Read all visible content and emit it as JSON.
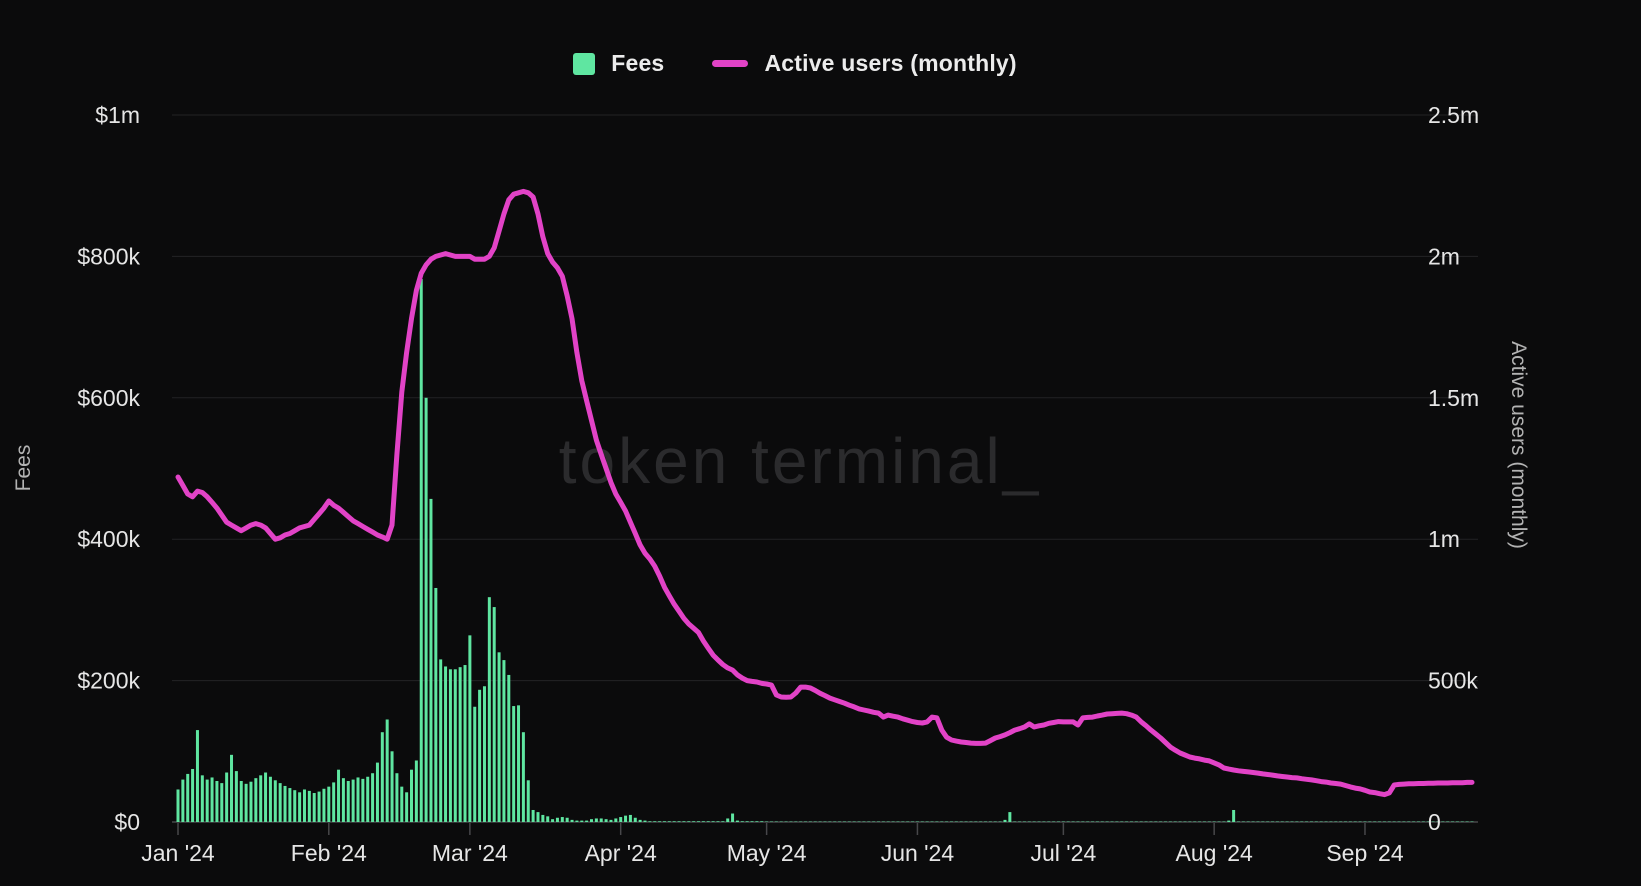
{
  "theme": {
    "background": "#0b0b0c",
    "tick_text": "#e6e6e6",
    "axis_title_text": "#b3b3b3",
    "gridline": "#232325",
    "baseline": "#47474a",
    "watermark_color": "#2b2b2d",
    "bar_color": "#5fe6a1",
    "line_color": "#e243c7"
  },
  "watermark": "token terminal_",
  "legend": [
    {
      "label": "Fees",
      "swatch": "square",
      "color": "#5fe6a1"
    },
    {
      "label": "Active users (monthly)",
      "swatch": "line",
      "color": "#e243c7"
    }
  ],
  "chart_data": {
    "type": "combo",
    "x_unit": "day",
    "x_range": "Jan 1 2024 - Sep 23 2024",
    "grid": "horizontal",
    "legend_position": "top-center",
    "x_tick_labels": [
      "Jan '24",
      "Feb '24",
      "Mar '24",
      "Apr '24",
      "May '24",
      "Jun '24",
      "Jul '24",
      "Aug '24",
      "Sep '24"
    ],
    "x_tick_day_index": [
      0,
      31,
      60,
      91,
      121,
      152,
      182,
      213,
      244
    ],
    "left_axis": {
      "label": "Fees",
      "min": 0,
      "max": 1000000,
      "tick_labels": [
        "$0",
        "$200k",
        "$400k",
        "$600k",
        "$800k",
        "$1m"
      ]
    },
    "right_axis": {
      "label": "Active users (monthly)",
      "min": 0,
      "max": 2500000,
      "tick_labels": [
        "0",
        "500k",
        "1m",
        "1.5m",
        "2m",
        "2.5m"
      ]
    },
    "series": [
      {
        "name": "Fees",
        "type": "bar",
        "axis": "left",
        "color": "#5fe6a1",
        "unit": "USD thousands per day",
        "values": [
          46,
          60,
          68,
          75,
          130,
          66,
          60,
          63,
          58,
          55,
          70,
          95,
          72,
          58,
          54,
          57,
          62,
          66,
          70,
          64,
          59,
          55,
          51,
          48,
          45,
          42,
          46,
          44,
          41,
          43,
          47,
          50,
          56,
          74,
          62,
          58,
          60,
          63,
          61,
          64,
          69,
          84,
          127,
          145,
          100,
          69,
          50,
          42,
          74,
          87,
          768,
          600,
          457,
          331,
          230,
          220,
          216,
          216,
          219,
          222,
          264,
          163,
          187,
          192,
          318,
          304,
          240,
          229,
          208,
          164,
          165,
          127,
          59,
          17,
          14,
          10,
          8,
          4,
          6,
          7,
          6,
          3,
          2,
          2,
          2,
          4,
          5,
          5,
          4,
          3,
          5,
          7,
          9,
          10,
          6,
          3,
          2,
          1,
          1,
          1,
          1,
          1,
          1,
          1,
          1,
          1,
          1,
          1,
          1,
          1,
          1,
          1,
          1,
          5,
          12,
          2,
          1,
          1,
          1,
          1,
          1,
          0.6,
          0.6,
          0.6,
          0.6,
          0.6,
          0.6,
          0.6,
          0.6,
          0.6,
          0.6,
          0.6,
          0.6,
          0.6,
          0.6,
          0.6,
          0.6,
          0.6,
          0.6,
          0.6,
          0.6,
          0.6,
          0.6,
          0.6,
          0.6,
          0.6,
          0.6,
          0.6,
          0.6,
          0.6,
          0.6,
          0.6,
          0.6,
          0.6,
          0.6,
          0.6,
          0.6,
          0.6,
          0.6,
          0.6,
          0.6,
          0.6,
          0.6,
          0.6,
          0.6,
          0.6,
          0.6,
          0.6,
          0.6,
          0.6,
          3,
          14,
          0.6,
          0.6,
          0.6,
          0.6,
          0.6,
          0.6,
          0.6,
          0.6,
          0.6,
          0.6,
          0.6,
          0.6,
          0.6,
          0.6,
          0.6,
          0.6,
          0.6,
          0.6,
          0.6,
          0.6,
          0.6,
          0.6,
          0.6,
          0.6,
          0.6,
          0.6,
          0.6,
          0.6,
          0.6,
          0.6,
          0.6,
          0.6,
          0.6,
          0.6,
          0.6,
          0.6,
          0.6,
          0.6,
          0.6,
          0.6,
          0.6,
          0.6,
          0.6,
          0.6,
          2,
          17,
          0.6,
          0.6,
          0.6,
          0.6,
          0.6,
          0.6,
          0.6,
          0.6,
          0.6,
          0.6,
          0.6,
          0.6,
          0.6,
          0.6,
          0.6,
          0.6,
          0.6,
          0.6,
          0.6,
          0.6,
          0.6,
          0.6,
          0.6,
          0.6,
          0.6,
          0.6,
          0.6,
          0.6,
          0.6,
          0.6,
          0.6,
          0.6,
          0.6,
          0.6,
          0.6,
          0.6,
          0.6,
          0.6,
          0.6,
          0.6,
          0.6,
          0.6,
          0.6,
          0.6,
          0.6,
          0.6,
          0.6,
          0.6,
          0.6
        ]
      },
      {
        "name": "Active users (monthly)",
        "type": "line",
        "axis": "right",
        "color": "#e243c7",
        "unit": "millions of users",
        "values": [
          1.22,
          1.19,
          1.16,
          1.15,
          1.17,
          1.165,
          1.15,
          1.13,
          1.11,
          1.085,
          1.06,
          1.05,
          1.04,
          1.03,
          1.04,
          1.05,
          1.055,
          1.05,
          1.04,
          1.02,
          1.0,
          1.005,
          1.015,
          1.02,
          1.03,
          1.04,
          1.045,
          1.05,
          1.07,
          1.09,
          1.11,
          1.135,
          1.12,
          1.11,
          1.095,
          1.08,
          1.065,
          1.055,
          1.045,
          1.035,
          1.025,
          1.015,
          1.008,
          1.0,
          1.05,
          1.3,
          1.52,
          1.66,
          1.78,
          1.88,
          1.94,
          1.97,
          1.99,
          2.0,
          2.005,
          2.01,
          2.005,
          2.0,
          2.0,
          2.0,
          2.0,
          1.99,
          1.99,
          1.99,
          2.0,
          2.03,
          2.09,
          2.15,
          2.2,
          2.22,
          2.225,
          2.23,
          2.225,
          2.21,
          2.15,
          2.07,
          2.01,
          1.98,
          1.96,
          1.93,
          1.86,
          1.78,
          1.66,
          1.56,
          1.49,
          1.42,
          1.35,
          1.3,
          1.25,
          1.2,
          1.16,
          1.13,
          1.1,
          1.06,
          1.02,
          0.98,
          0.95,
          0.93,
          0.905,
          0.87,
          0.83,
          0.8,
          0.77,
          0.745,
          0.72,
          0.7,
          0.685,
          0.67,
          0.64,
          0.615,
          0.59,
          0.573,
          0.557,
          0.545,
          0.537,
          0.52,
          0.509,
          0.5,
          0.497,
          0.495,
          0.49,
          0.488,
          0.484,
          0.449,
          0.442,
          0.441,
          0.442,
          0.456,
          0.477,
          0.477,
          0.474,
          0.465,
          0.455,
          0.447,
          0.438,
          0.432,
          0.426,
          0.42,
          0.413,
          0.407,
          0.4,
          0.396,
          0.392,
          0.388,
          0.385,
          0.371,
          0.378,
          0.374,
          0.371,
          0.365,
          0.36,
          0.355,
          0.352,
          0.35,
          0.354,
          0.371,
          0.368,
          0.325,
          0.3,
          0.29,
          0.286,
          0.283,
          0.281,
          0.279,
          0.278,
          0.278,
          0.279,
          0.288,
          0.297,
          0.302,
          0.308,
          0.316,
          0.325,
          0.33,
          0.336,
          0.347,
          0.336,
          0.34,
          0.343,
          0.349,
          0.352,
          0.355,
          0.354,
          0.354,
          0.354,
          0.343,
          0.368,
          0.37,
          0.371,
          0.375,
          0.378,
          0.382,
          0.383,
          0.384,
          0.385,
          0.383,
          0.378,
          0.371,
          0.354,
          0.34,
          0.325,
          0.311,
          0.297,
          0.281,
          0.265,
          0.254,
          0.244,
          0.237,
          0.23,
          0.226,
          0.223,
          0.219,
          0.216,
          0.209,
          0.202,
          0.191,
          0.187,
          0.184,
          0.181,
          0.179,
          0.177,
          0.175,
          0.173,
          0.17,
          0.168,
          0.166,
          0.163,
          0.161,
          0.159,
          0.157,
          0.156,
          0.153,
          0.151,
          0.149,
          0.146,
          0.143,
          0.141,
          0.138,
          0.136,
          0.134,
          0.129,
          0.124,
          0.12,
          0.117,
          0.112,
          0.106,
          0.104,
          0.1,
          0.097,
          0.103,
          0.131,
          0.133,
          0.134,
          0.135,
          0.135,
          0.136,
          0.136,
          0.137,
          0.137,
          0.138,
          0.138,
          0.138,
          0.139,
          0.139,
          0.139,
          0.14,
          0.14
        ]
      }
    ]
  }
}
